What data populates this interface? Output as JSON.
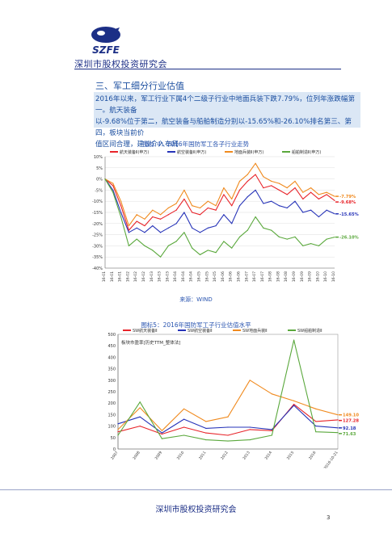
{
  "header": {
    "logo_text": "SZFE",
    "org_name": "深圳市股权投资研究会"
  },
  "section": {
    "title": "三、军工细分行业估值",
    "paragraph_lines": [
      "2016年以来，军工行业下属4个二级子行业中地面兵装下跌7.79%，位列年涨跌幅第一。航天装备",
      "以-9.68%位于第二，航空装备与船舶制造分别以-15.65%和-26.10%排名第三、第四，板块当前价",
      "值区间合理，建议介入布局"
    ]
  },
  "figure1": {
    "caption": "图标 4：2016年国防军工各子行业走势",
    "source": "来源：WIND"
  },
  "figure2": {
    "caption": "图标5：2016年国防军工子行业估值水平",
    "inner_title": "板块市盈率[历史TTM_整体法]"
  },
  "chart_data": [
    {
      "type": "line",
      "title": "图标 4：2016年国防军工各子行业走势",
      "legend_position": "top",
      "x": [
        "16-01",
        "16-01",
        "16-01",
        "16-02",
        "16-02",
        "16-02",
        "16-03",
        "16-03",
        "16-03",
        "16-04",
        "16-04",
        "16-04",
        "16-05",
        "16-05",
        "16-05",
        "16-06",
        "16-06",
        "16-06",
        "16-07",
        "16-07",
        "16-07",
        "16-08",
        "16-08",
        "16-08",
        "16-09",
        "16-09",
        "16-09",
        "16-10",
        "16-10",
        "16-10"
      ],
      "ylim": [
        -40,
        10
      ],
      "yticks": [
        "10%",
        "5%",
        "0%",
        "-5%",
        "-10%",
        "-15%",
        "-20%",
        "-25%",
        "-30%",
        "-35%",
        "-40%"
      ],
      "grid": true,
      "series": [
        {
          "name": "航天装备Ⅱ(申万)",
          "color": "#e8242a",
          "values": [
            0,
            -3,
            -12,
            -23,
            -19,
            -21,
            -17,
            -18,
            -16,
            -14,
            -9,
            -15,
            -16,
            -13,
            -14,
            -7,
            -12,
            -5,
            -1,
            2,
            -4,
            -3,
            -5,
            -7,
            -4,
            -9,
            -6,
            -9,
            -7,
            -9.68
          ],
          "end_label": "-9.68%"
        },
        {
          "name": "航空装备Ⅱ(申万)",
          "color": "#2633b8",
          "values": [
            0,
            -5,
            -15,
            -24,
            -22,
            -24,
            -21,
            -24,
            -22,
            -20,
            -15,
            -22,
            -24,
            -22,
            -21,
            -16,
            -20,
            -12,
            -8,
            -5,
            -11,
            -10,
            -12,
            -13,
            -10,
            -15,
            -14,
            -17,
            -14,
            -15.65
          ],
          "end_label": "-15.65%"
        },
        {
          "name": "地面兵装Ⅱ(申万)",
          "color": "#f08a1e",
          "values": [
            0,
            -2,
            -10,
            -21,
            -16,
            -18,
            -14,
            -16,
            -13,
            -11,
            -5,
            -12,
            -13,
            -10,
            -12,
            -4,
            -9,
            -1,
            2,
            7,
            1,
            -1,
            -2,
            -4,
            -1,
            -6,
            -4,
            -7,
            -6,
            -7.79
          ],
          "end_label": "-7.79%"
        },
        {
          "name": "船舶制造Ⅱ(申万)",
          "color": "#5aa83c",
          "values": [
            0,
            -6,
            -17,
            -30,
            -27,
            -30,
            -32,
            -35,
            -30,
            -28,
            -24,
            -31,
            -34,
            -32,
            -33,
            -28,
            -31,
            -26,
            -23,
            -17,
            -22,
            -23,
            -26,
            -27,
            -26,
            -30,
            -29,
            -30,
            -27,
            -26.1
          ],
          "end_label": "-26.10%"
        }
      ]
    },
    {
      "type": "line",
      "title": "图标5：2016年国防军工子行业估值水平",
      "legend_position": "top",
      "x": [
        "2007",
        "2008",
        "2009",
        "2010",
        "2011",
        "2012",
        "2013",
        "2014",
        "2015",
        "2016",
        "2016-10-21"
      ],
      "ylim": [
        0,
        500
      ],
      "yticks": [
        "500",
        "450",
        "400",
        "350",
        "300",
        "250",
        "200",
        "150",
        "100",
        "50",
        "0"
      ],
      "grid": false,
      "series": [
        {
          "name": "SW航天装备Ⅱ",
          "color": "#e8242a",
          "values": [
            75,
            100,
            65,
            95,
            70,
            60,
            85,
            80,
            195,
            120,
            127.28
          ],
          "end_label": "127.28"
        },
        {
          "name": "SW航空装备Ⅱ",
          "color": "#2633b8",
          "values": [
            110,
            140,
            70,
            130,
            90,
            95,
            95,
            85,
            190,
            100,
            92.18
          ],
          "end_label": "92.18"
        },
        {
          "name": "SW地面兵装Ⅱ",
          "color": "#f08a1e",
          "values": [
            85,
            180,
            80,
            175,
            120,
            140,
            300,
            240,
            210,
            175,
            149.1
          ],
          "end_label": "149.10"
        },
        {
          "name": "SW船舶制造Ⅱ",
          "color": "#5aa83c",
          "values": [
            60,
            205,
            45,
            60,
            40,
            35,
            40,
            60,
            475,
            75,
            71.63
          ],
          "end_label": "71.63"
        }
      ]
    }
  ],
  "footer": {
    "org_name": "深圳市股权投资研究会",
    "page_number": "3"
  }
}
